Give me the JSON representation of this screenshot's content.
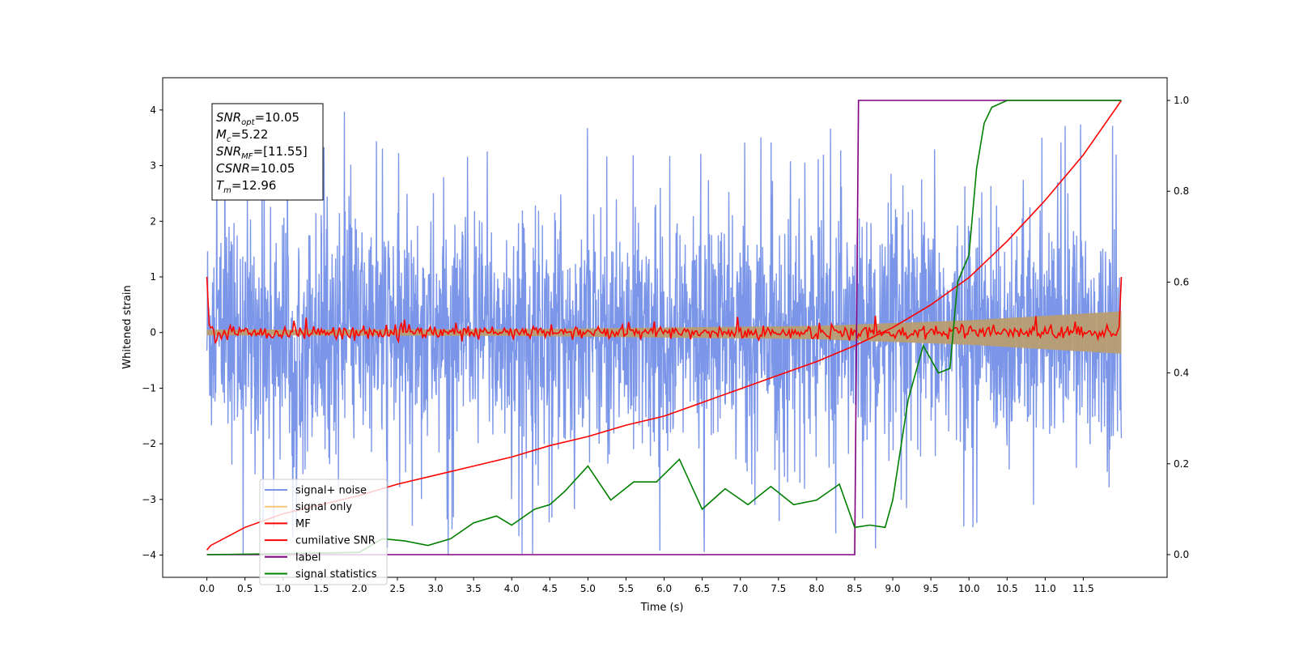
{
  "chart_data": {
    "type": "line",
    "xlabel": "Time (s)",
    "ylabel": "Whitened strain",
    "xlim": [
      -0.58,
      12.6
    ],
    "ylim": [
      -4.4,
      4.58
    ],
    "ylim_right": [
      -0.05,
      1.05
    ],
    "x_ticks": [
      "0.0",
      "0.5",
      "1.0",
      "1.5",
      "2.0",
      "2.5",
      "3.0",
      "3.5",
      "4.0",
      "4.5",
      "5.0",
      "5.5",
      "6.0",
      "6.5",
      "7.0",
      "7.5",
      "8.0",
      "8.5",
      "9.0",
      "9.5",
      "10.0",
      "10.5",
      "11.0",
      "11.5"
    ],
    "y_ticks": [
      "4",
      "3",
      "2",
      "1",
      "0",
      "−1",
      "−2",
      "−3",
      "−4"
    ],
    "y_ticks_right": [
      "1.0",
      "0.8",
      "0.6",
      "0.4",
      "0.2",
      "0.0"
    ],
    "annotation": [
      {
        "name": "SNR",
        "sub": "opt",
        "value": "=10.05"
      },
      {
        "name": "M",
        "sub": "c",
        "value": "=5.22"
      },
      {
        "name": "SNR",
        "sub": "MF",
        "value": "=[11.55]"
      },
      {
        "name": "CSNR",
        "sub": "",
        "value": "=10.05"
      },
      {
        "name": "T",
        "sub": "m",
        "value": "=12.96"
      }
    ],
    "legend_position": "lower-left",
    "series": [
      {
        "name": "signal+ noise",
        "axis": "left",
        "color": "#7b96e8",
        "description": "noise band, roughly ±2.3 with spikes up to 4.2 / down to -4.0 over t=0..12"
      },
      {
        "name": "signal only",
        "axis": "left",
        "color": "#f5c57a",
        "envelope": [
          [
            0.0,
            0.05
          ],
          [
            4.0,
            0.06
          ],
          [
            8.0,
            0.12
          ],
          [
            10.0,
            0.22
          ],
          [
            12.0,
            0.38
          ]
        ]
      },
      {
        "name": "MF",
        "axis": "left",
        "color": "#ff0000",
        "description": "fluctuates about 0 (±0.15), with ends at 1.0"
      },
      {
        "name": "cumilative SNR",
        "axis": "right",
        "color": "#ff0000",
        "x": [
          0.0,
          0.05,
          0.5,
          1.0,
          1.5,
          2.0,
          2.5,
          3.0,
          3.5,
          4.0,
          4.5,
          5.0,
          5.5,
          6.0,
          6.5,
          7.0,
          7.5,
          8.0,
          8.5,
          9.0,
          9.5,
          10.0,
          10.5,
          11.0,
          11.5,
          12.0
        ],
        "y": [
          0.01,
          0.02,
          0.06,
          0.09,
          0.11,
          0.13,
          0.155,
          0.175,
          0.195,
          0.215,
          0.24,
          0.26,
          0.285,
          0.305,
          0.335,
          0.365,
          0.395,
          0.425,
          0.46,
          0.5,
          0.55,
          0.61,
          0.69,
          0.78,
          0.88,
          1.0
        ]
      },
      {
        "name": "label",
        "axis": "right",
        "color": "#800080",
        "x": [
          0.0,
          8.5,
          8.55,
          12.0
        ],
        "y": [
          0.0,
          0.0,
          1.0,
          1.0
        ]
      },
      {
        "name": "signal statistics",
        "axis": "right",
        "color": "#008000",
        "x": [
          0.0,
          1.0,
          2.0,
          2.3,
          2.6,
          2.9,
          3.2,
          3.5,
          3.8,
          4.0,
          4.3,
          4.5,
          4.7,
          5.0,
          5.3,
          5.6,
          5.9,
          6.2,
          6.5,
          6.8,
          7.1,
          7.4,
          7.7,
          8.0,
          8.3,
          8.5,
          8.7,
          8.9,
          9.0,
          9.2,
          9.4,
          9.6,
          9.75,
          9.85,
          10.0,
          10.1,
          10.2,
          10.3,
          10.5,
          11.0,
          11.5,
          12.0
        ],
        "y": [
          0.0,
          0.002,
          0.005,
          0.035,
          0.03,
          0.02,
          0.035,
          0.07,
          0.085,
          0.065,
          0.1,
          0.11,
          0.14,
          0.195,
          0.12,
          0.16,
          0.16,
          0.21,
          0.1,
          0.145,
          0.11,
          0.15,
          0.11,
          0.12,
          0.155,
          0.06,
          0.065,
          0.06,
          0.12,
          0.34,
          0.46,
          0.4,
          0.41,
          0.6,
          0.66,
          0.85,
          0.95,
          0.985,
          1.0,
          1.0,
          1.0,
          1.0
        ]
      }
    ]
  }
}
